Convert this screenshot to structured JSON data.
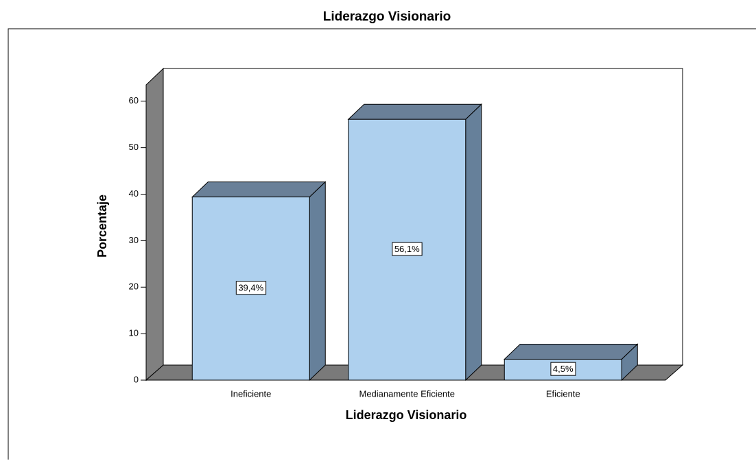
{
  "chart_data": {
    "type": "bar3d",
    "title": "Liderazgo Visionario",
    "x_label": "Liderazgo Visionario",
    "y_label": "Porcentaje",
    "categories": [
      "Ineficiente",
      "Medianamente Eficiente",
      "Eficiente"
    ],
    "values": [
      39.4,
      56.1,
      4.5
    ],
    "value_labels": [
      "39,4%",
      "56,1%",
      "4,5%"
    ],
    "color": "#aed0ee",
    "ylim": [
      0,
      63.5
    ],
    "yticks": [
      0,
      10,
      20,
      30,
      40,
      50,
      60
    ]
  }
}
